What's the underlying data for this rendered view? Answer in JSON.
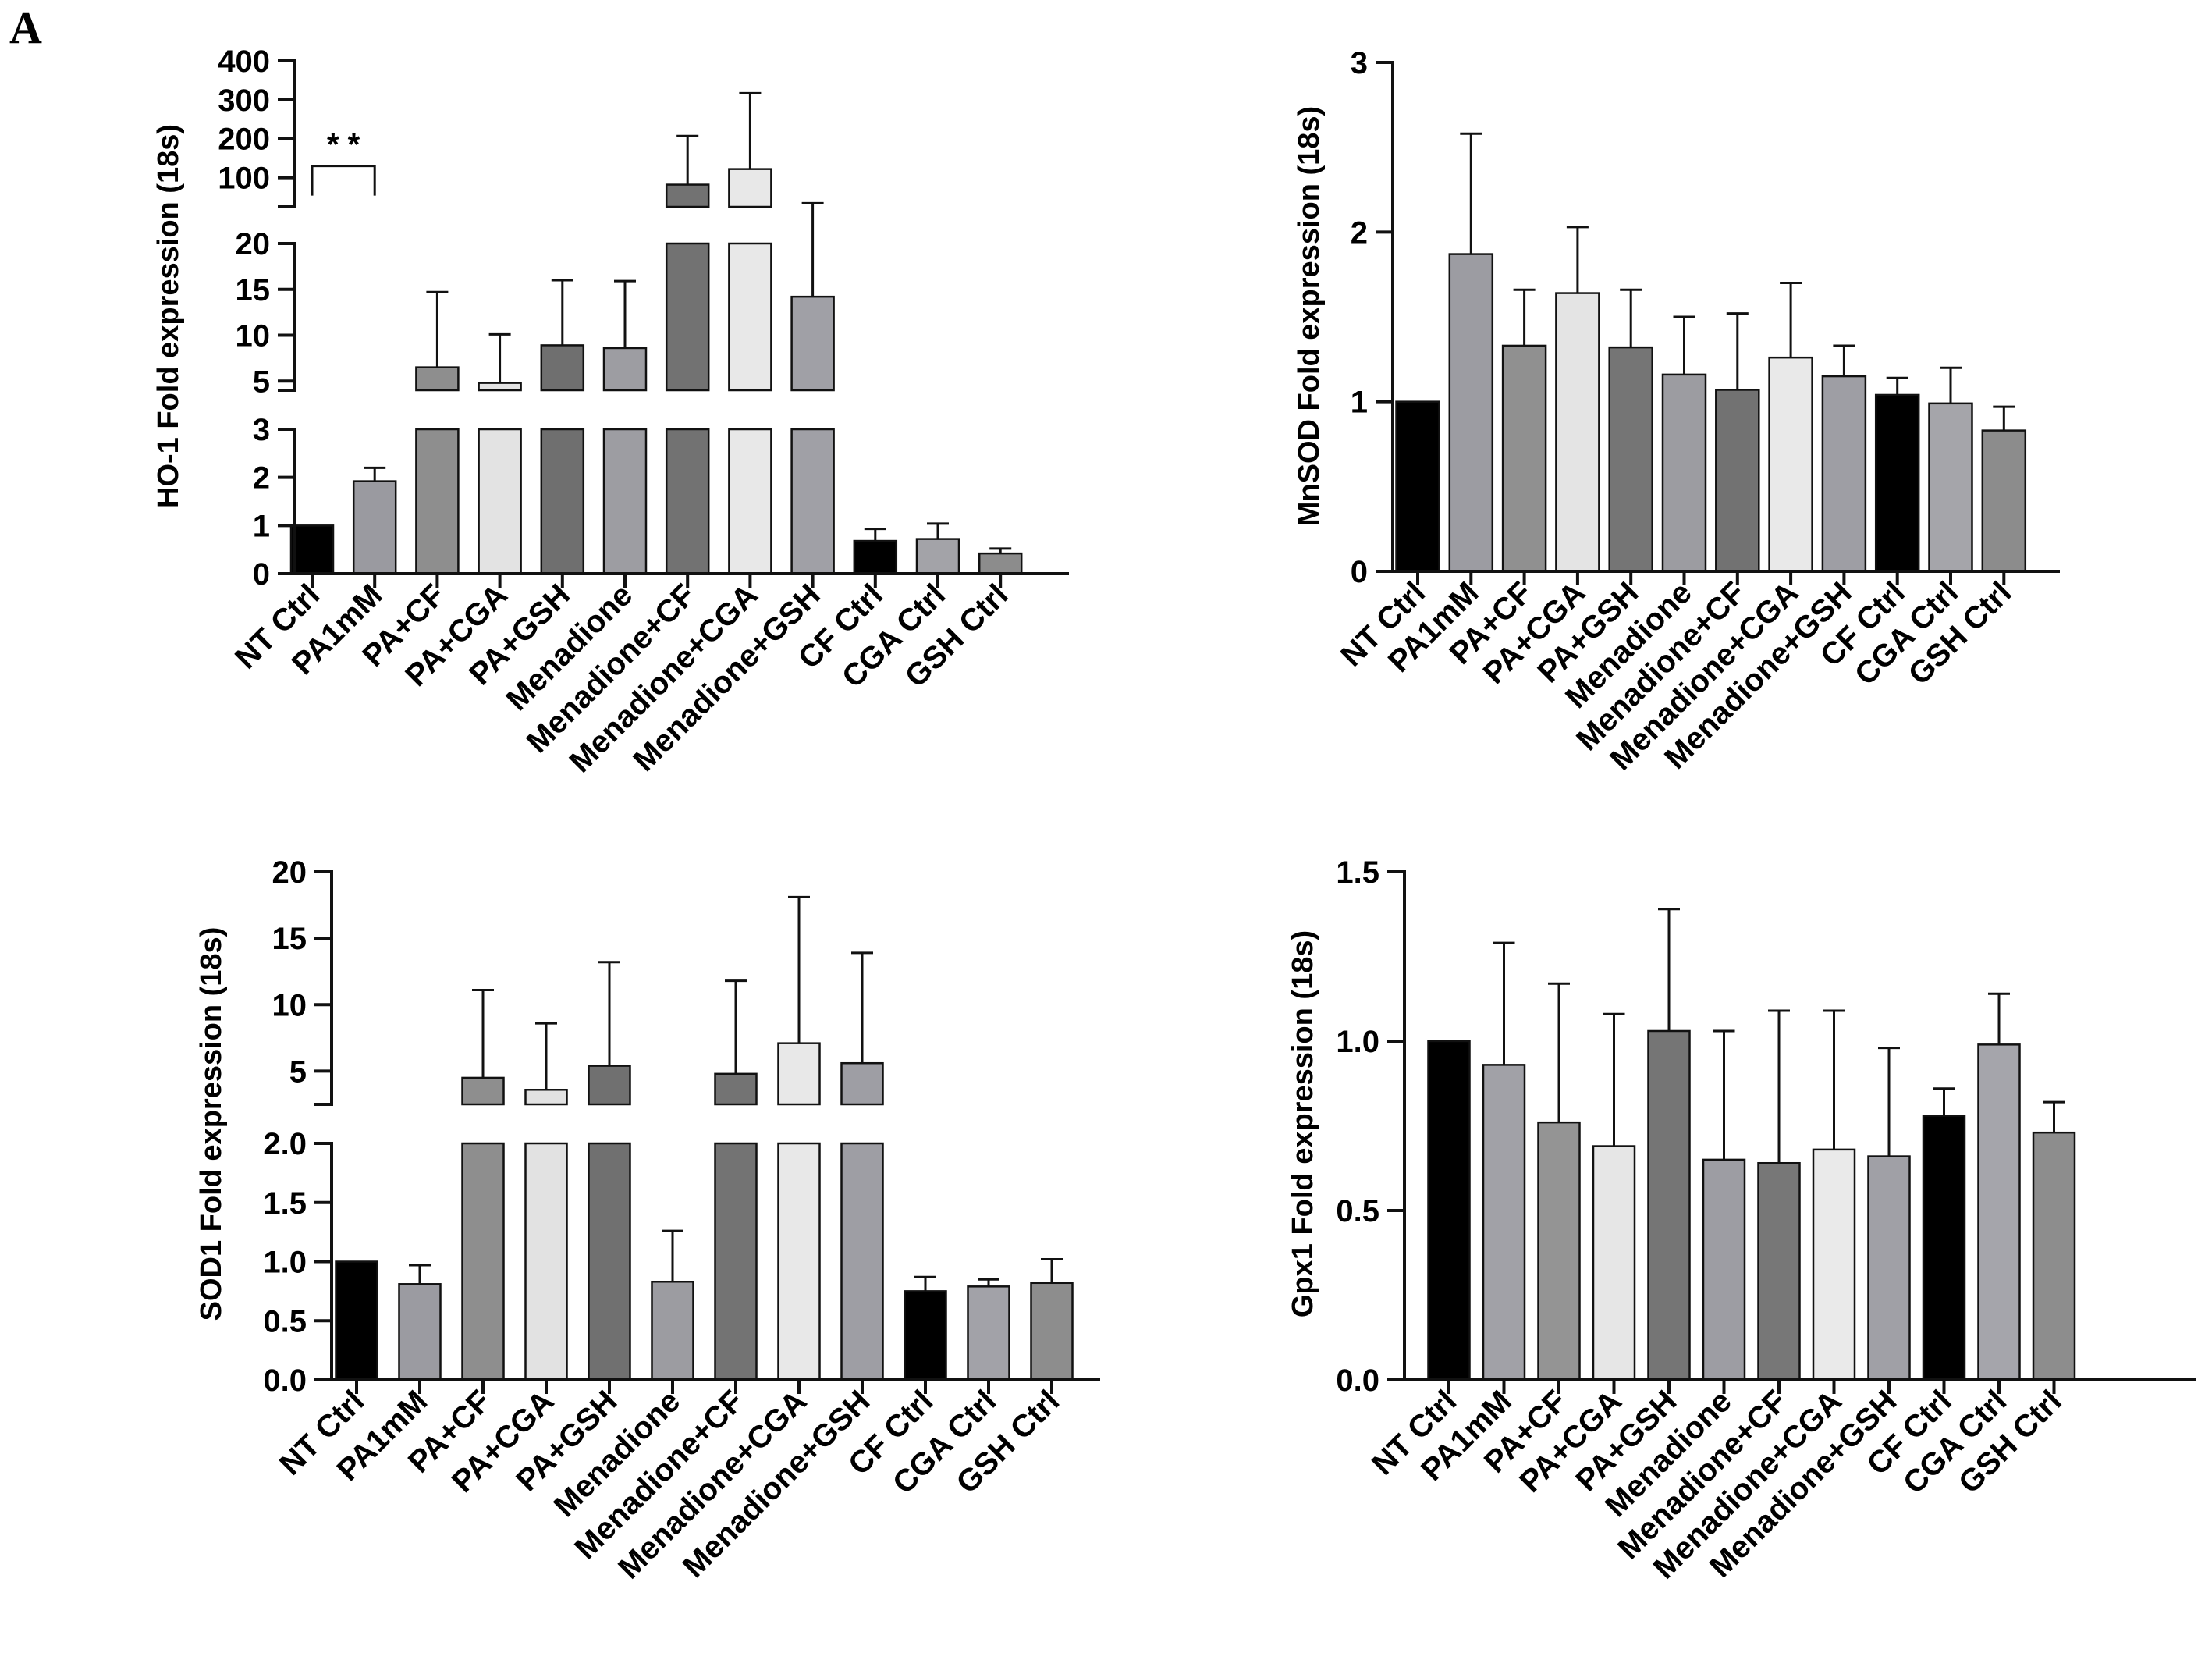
{
  "panel_label": "A",
  "chart_data": [
    {
      "id": "ho1",
      "type": "bar",
      "ylabel": "HO-1 Fold expression (18s)",
      "categories": [
        "NT Ctrl",
        "PA1mM",
        "PA+CF",
        "PA+CGA",
        "PA+GSH",
        "Menadione",
        "Menadione+CF",
        "Menadione+CGA",
        "Menadione+GSH",
        "CF Ctrl",
        "CGA Ctrl",
        "GSH Ctrl"
      ],
      "values": [
        1.0,
        1.92,
        6.5,
        4.8,
        8.9,
        8.6,
        82,
        122,
        14.2,
        0.68,
        0.72,
        0.42
      ],
      "errors": [
        0,
        0.28,
        8.2,
        5.3,
        7.1,
        7.3,
        125,
        195,
        20,
        0.25,
        0.32,
        0.1
      ],
      "colors": [
        "#000000",
        "#9a9aa0",
        "#8e8e8e",
        "#e3e3e3",
        "#6f6f6f",
        "#9d9da2",
        "#727272",
        "#e8e8e8",
        "#a0a0a6",
        "#000000",
        "#a3a3a8",
        "#8c8c8c"
      ],
      "axis_breaks": [
        [
          3,
          4
        ],
        [
          20,
          25
        ]
      ],
      "yticks": [
        0,
        1,
        2,
        3,
        5,
        10,
        15,
        20,
        100,
        200,
        300,
        400
      ],
      "ylim": [
        0,
        400
      ],
      "annotation": {
        "text": "* *",
        "from": 0,
        "to": 1,
        "level": 130
      }
    },
    {
      "id": "mnsod",
      "type": "bar",
      "ylabel": "MnSOD Fold expression (18s)",
      "categories": [
        "NT Ctrl",
        "PA1mM",
        "PA+CF",
        "PA+CGA",
        "PA+GSH",
        "Menadione",
        "Menadione+CF",
        "Menadione+CGA",
        "Menadione+GSH",
        "CF Ctrl",
        "CGA Ctrl",
        "GSH Ctrl"
      ],
      "values": [
        1.0,
        1.87,
        1.33,
        1.64,
        1.32,
        1.16,
        1.07,
        1.26,
        1.15,
        1.04,
        0.99,
        0.83
      ],
      "errors": [
        0,
        0.71,
        0.33,
        0.39,
        0.34,
        0.34,
        0.45,
        0.44,
        0.18,
        0.1,
        0.21,
        0.14
      ],
      "colors": [
        "#000000",
        "#9c9ca2",
        "#909090",
        "#e4e4e4",
        "#757575",
        "#9c9ca1",
        "#727272",
        "#e9e9e9",
        "#9e9ea4",
        "#000000",
        "#a5a5aa",
        "#8c8c8c"
      ],
      "yticks": [
        0,
        1,
        2,
        3
      ],
      "ylim": [
        0,
        3
      ]
    },
    {
      "id": "sod1",
      "type": "bar",
      "ylabel": "SOD1 Fold expression (18s)",
      "categories": [
        "NT Ctrl",
        "PA1mM",
        "PA+CF",
        "PA+CGA",
        "PA+GSH",
        "Menadione",
        "Menadione+CF",
        "Menadione+CGA",
        "Menadione+GSH",
        "CF Ctrl",
        "CGA Ctrl",
        "GSH Ctrl"
      ],
      "values": [
        1.0,
        0.81,
        4.5,
        3.6,
        5.4,
        0.83,
        4.8,
        7.1,
        5.6,
        0.75,
        0.79,
        0.82
      ],
      "errors": [
        0,
        0.16,
        6.6,
        5.0,
        7.8,
        0.43,
        7.0,
        11.0,
        8.3,
        0.12,
        0.06,
        0.2
      ],
      "colors": [
        "#000000",
        "#9b9ba1",
        "#8e8e8e",
        "#e2e2e2",
        "#707070",
        "#9c9ca1",
        "#737373",
        "#e8e8e8",
        "#9e9ea4",
        "#000000",
        "#a2a2a8",
        "#8d8d8d"
      ],
      "axis_breaks": [
        [
          2,
          2.5
        ]
      ],
      "yticks": [
        0,
        0.5,
        1.0,
        1.5,
        2.0,
        5,
        10,
        15,
        20
      ],
      "ytick_labels": [
        "0.0",
        "0.5",
        "1.0",
        "1.5",
        "2.0",
        "5",
        "10",
        "15",
        "20"
      ],
      "ylim": [
        0,
        20
      ]
    },
    {
      "id": "gpx1",
      "type": "bar",
      "ylabel": "Gpx1 Fold expression (18s)",
      "categories": [
        "NT Ctrl",
        "PA1mM",
        "PA+CF",
        "PA+CGA",
        "PA+GSH",
        "Menadione",
        "Menadione+CF",
        "Menadione+CGA",
        "Menadione+GSH",
        "CF Ctrl",
        "CGA Ctrl",
        "GSH Ctrl"
      ],
      "values": [
        1.0,
        0.93,
        0.76,
        0.69,
        1.03,
        0.65,
        0.64,
        0.68,
        0.66,
        0.78,
        0.99,
        0.73
      ],
      "errors": [
        0,
        0.36,
        0.41,
        0.39,
        0.36,
        0.38,
        0.45,
        0.41,
        0.32,
        0.08,
        0.15,
        0.09
      ],
      "colors": [
        "#000000",
        "#a1a1a7",
        "#949494",
        "#e6e6e6",
        "#757575",
        "#9d9da3",
        "#777777",
        "#eaeaea",
        "#a0a0a6",
        "#000000",
        "#a5a5ab",
        "#8d8d8d"
      ],
      "yticks": [
        0,
        0.5,
        1.0,
        1.5
      ],
      "ytick_labels": [
        "0.0",
        "0.5",
        "1.0",
        "1.5"
      ],
      "ylim": [
        0,
        1.5
      ]
    }
  ]
}
